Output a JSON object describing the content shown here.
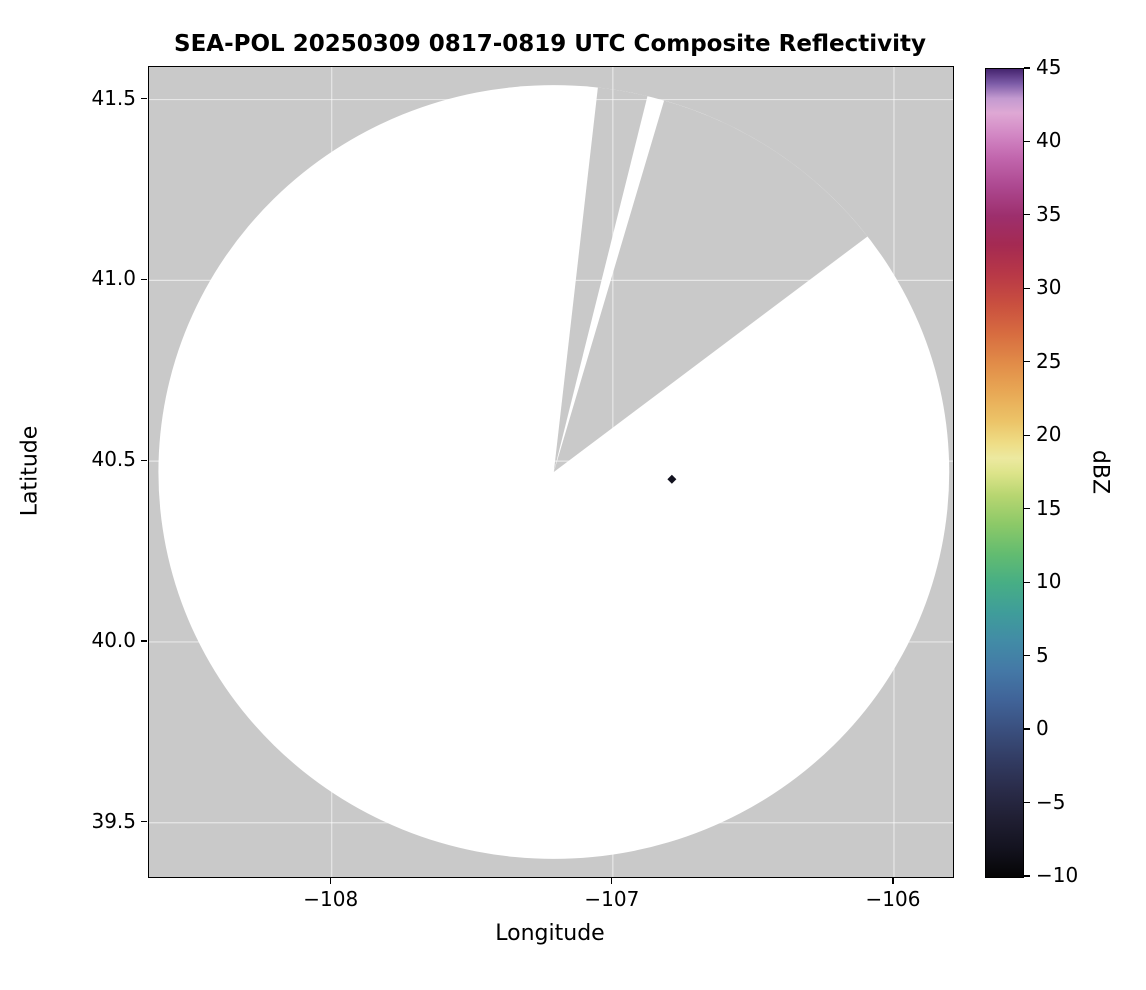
{
  "title": "SEA-POL 20250309 0817-0819 UTC Composite Reflectivity",
  "axes": {
    "x": {
      "label": "Longitude",
      "ticks": [
        "−108",
        "−107",
        "−106"
      ]
    },
    "y": {
      "label": "Latitude",
      "ticks": [
        "41.5",
        "41.0",
        "40.5",
        "40.0",
        "39.5"
      ]
    }
  },
  "colorbar": {
    "label": "dBZ",
    "ticks": [
      "45",
      "40",
      "35",
      "30",
      "25",
      "20",
      "15",
      "10",
      "5",
      "0",
      "−5",
      "−10"
    ]
  },
  "chart_data": {
    "type": "heatmap",
    "title": "SEA-POL 20250309 0817-0819 UTC Composite Reflectivity",
    "xlabel": "Longitude",
    "ylabel": "Latitude",
    "xlim": [
      -108.65,
      -105.79
    ],
    "ylim": [
      39.35,
      41.59
    ],
    "xticks": [
      -108,
      -107,
      -106
    ],
    "yticks": [
      41.5,
      41.0,
      40.5,
      40.0,
      39.5
    ],
    "grid": true,
    "grid_color": "rgba(255,255,255,0.55)",
    "background_no_data_color": "#c9c9c9",
    "colorbar_label": "dBZ",
    "colorbar_range": [
      -10,
      45
    ],
    "colorbar_tick_values": [
      45,
      40,
      35,
      30,
      25,
      20,
      15,
      10,
      5,
      0,
      -5,
      -10
    ],
    "radar": {
      "center_lon": -107.21,
      "center_lat": 40.47,
      "range_radius_deg_lat": 1.07,
      "coverage_color": "#ffffff",
      "missing_sectors_azimuth_deg": [
        [
          6.4,
          13.7
        ],
        [
          16.2,
          52.5
        ]
      ]
    },
    "echoes": [
      {
        "lon": -106.79,
        "lat": 40.45,
        "approx_dBZ": -5,
        "color": "#12121f"
      }
    ],
    "colormap_stops": [
      {
        "v": -10,
        "c": "#050505"
      },
      {
        "v": -8,
        "c": "#141320"
      },
      {
        "v": -6,
        "c": "#201f33"
      },
      {
        "v": -4,
        "c": "#2a2c4a"
      },
      {
        "v": -2,
        "c": "#323c63"
      },
      {
        "v": 0,
        "c": "#3a4f7e"
      },
      {
        "v": 2,
        "c": "#406398"
      },
      {
        "v": 4,
        "c": "#4478a6"
      },
      {
        "v": 6,
        "c": "#428ba6"
      },
      {
        "v": 8,
        "c": "#3f9d9a"
      },
      {
        "v": 10,
        "c": "#47ae85"
      },
      {
        "v": 12,
        "c": "#63bc70"
      },
      {
        "v": 14,
        "c": "#8cc968"
      },
      {
        "v": 16,
        "c": "#b8d671"
      },
      {
        "v": 17.5,
        "c": "#dde48a"
      },
      {
        "v": 18.5,
        "c": "#ece9a0"
      },
      {
        "v": 19.5,
        "c": "#eedd86"
      },
      {
        "v": 21,
        "c": "#ecc468"
      },
      {
        "v": 23,
        "c": "#e8a855"
      },
      {
        "v": 25,
        "c": "#e18b48"
      },
      {
        "v": 27,
        "c": "#d76c40"
      },
      {
        "v": 29,
        "c": "#c94f3f"
      },
      {
        "v": 31,
        "c": "#b83847"
      },
      {
        "v": 33,
        "c": "#a52a52"
      },
      {
        "v": 35,
        "c": "#9d2f6d"
      },
      {
        "v": 37,
        "c": "#ad4890"
      },
      {
        "v": 39,
        "c": "#c267ae"
      },
      {
        "v": 40.5,
        "c": "#d287c4"
      },
      {
        "v": 42,
        "c": "#dfa8d4"
      },
      {
        "v": 43,
        "c": "#c39ad0"
      },
      {
        "v": 44,
        "c": "#7d5ca8"
      },
      {
        "v": 45,
        "c": "#45246e"
      }
    ]
  }
}
